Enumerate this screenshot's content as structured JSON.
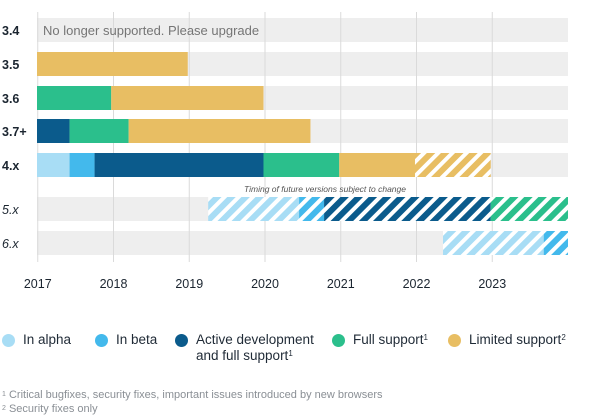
{
  "chart_data": {
    "type": "bar",
    "orientation": "horizontal-timeline",
    "x_axis": {
      "ticks": [
        "2017",
        "2018",
        "2019",
        "2020",
        "2021",
        "2022",
        "2023"
      ],
      "range": [
        2016.99,
        2024.0
      ]
    },
    "note": "Timing of future versions subject to change",
    "rows": [
      {
        "name": "3.4",
        "italic": false,
        "row_label_text": "No longer supported. Please upgrade",
        "segments": []
      },
      {
        "name": "3.5",
        "italic": false,
        "segments": [
          {
            "status": "limited",
            "start": 2016.99,
            "end": 2018.98,
            "future": false
          }
        ]
      },
      {
        "name": "3.6",
        "italic": false,
        "segments": [
          {
            "status": "full",
            "start": 2016.99,
            "end": 2017.97,
            "future": false
          },
          {
            "status": "limited",
            "start": 2017.97,
            "end": 2019.98,
            "future": false
          }
        ]
      },
      {
        "name": "3.7+",
        "italic": false,
        "segments": [
          {
            "status": "active",
            "start": 2016.99,
            "end": 2017.42,
            "future": false
          },
          {
            "status": "full",
            "start": 2017.42,
            "end": 2018.2,
            "future": false
          },
          {
            "status": "limited",
            "start": 2018.2,
            "end": 2020.6,
            "future": false
          }
        ]
      },
      {
        "name": "4.x",
        "italic": false,
        "segments": [
          {
            "status": "alpha",
            "start": 2016.99,
            "end": 2017.42,
            "future": false
          },
          {
            "status": "beta",
            "start": 2017.42,
            "end": 2017.75,
            "future": false
          },
          {
            "status": "active",
            "start": 2017.75,
            "end": 2019.98,
            "future": false
          },
          {
            "status": "full",
            "start": 2019.98,
            "end": 2020.98,
            "future": false
          },
          {
            "status": "limited",
            "start": 2020.98,
            "end": 2021.98,
            "future": false
          },
          {
            "status": "limited",
            "start": 2021.98,
            "end": 2022.98,
            "future": true
          }
        ]
      },
      {
        "name": "5.x",
        "italic": true,
        "segments": [
          {
            "status": "alpha",
            "start": 2019.25,
            "end": 2020.45,
            "future": true
          },
          {
            "status": "beta",
            "start": 2020.45,
            "end": 2020.78,
            "future": true
          },
          {
            "status": "active",
            "start": 2020.78,
            "end": 2022.98,
            "future": true
          },
          {
            "status": "full",
            "start": 2022.98,
            "end": 2024.0,
            "future": true
          }
        ]
      },
      {
        "name": "6.x",
        "italic": true,
        "segments": [
          {
            "status": "alpha",
            "start": 2022.35,
            "end": 2023.68,
            "future": true
          },
          {
            "status": "beta",
            "start": 2023.68,
            "end": 2024.0,
            "future": true
          }
        ]
      }
    ]
  },
  "legend": {
    "items": [
      {
        "key": "alpha",
        "label": "In alpha",
        "sup": "",
        "color": "#a8ddf5"
      },
      {
        "key": "beta",
        "label": "In beta",
        "sup": "",
        "color": "#43b9ec"
      },
      {
        "key": "active",
        "label": "Active development",
        "label2": "and full support",
        "sup": "1",
        "color": "#0b5b8c"
      },
      {
        "key": "full",
        "label": "Full support",
        "sup": "1",
        "color": "#2bbf8c"
      },
      {
        "key": "limited",
        "label": "Limited support",
        "sup": "2",
        "color": "#e8be63"
      }
    ]
  },
  "footnotes": [
    {
      "sup": "1",
      "text": "Critical bugfixes, security fixes, important issues introduced by new browsers"
    },
    {
      "sup": "2",
      "text": "Security fixes only"
    }
  ],
  "colors": {
    "track": "#eeeeee",
    "gridline": "#dadada",
    "label": "#1b2530",
    "muted_text": "#757575"
  }
}
